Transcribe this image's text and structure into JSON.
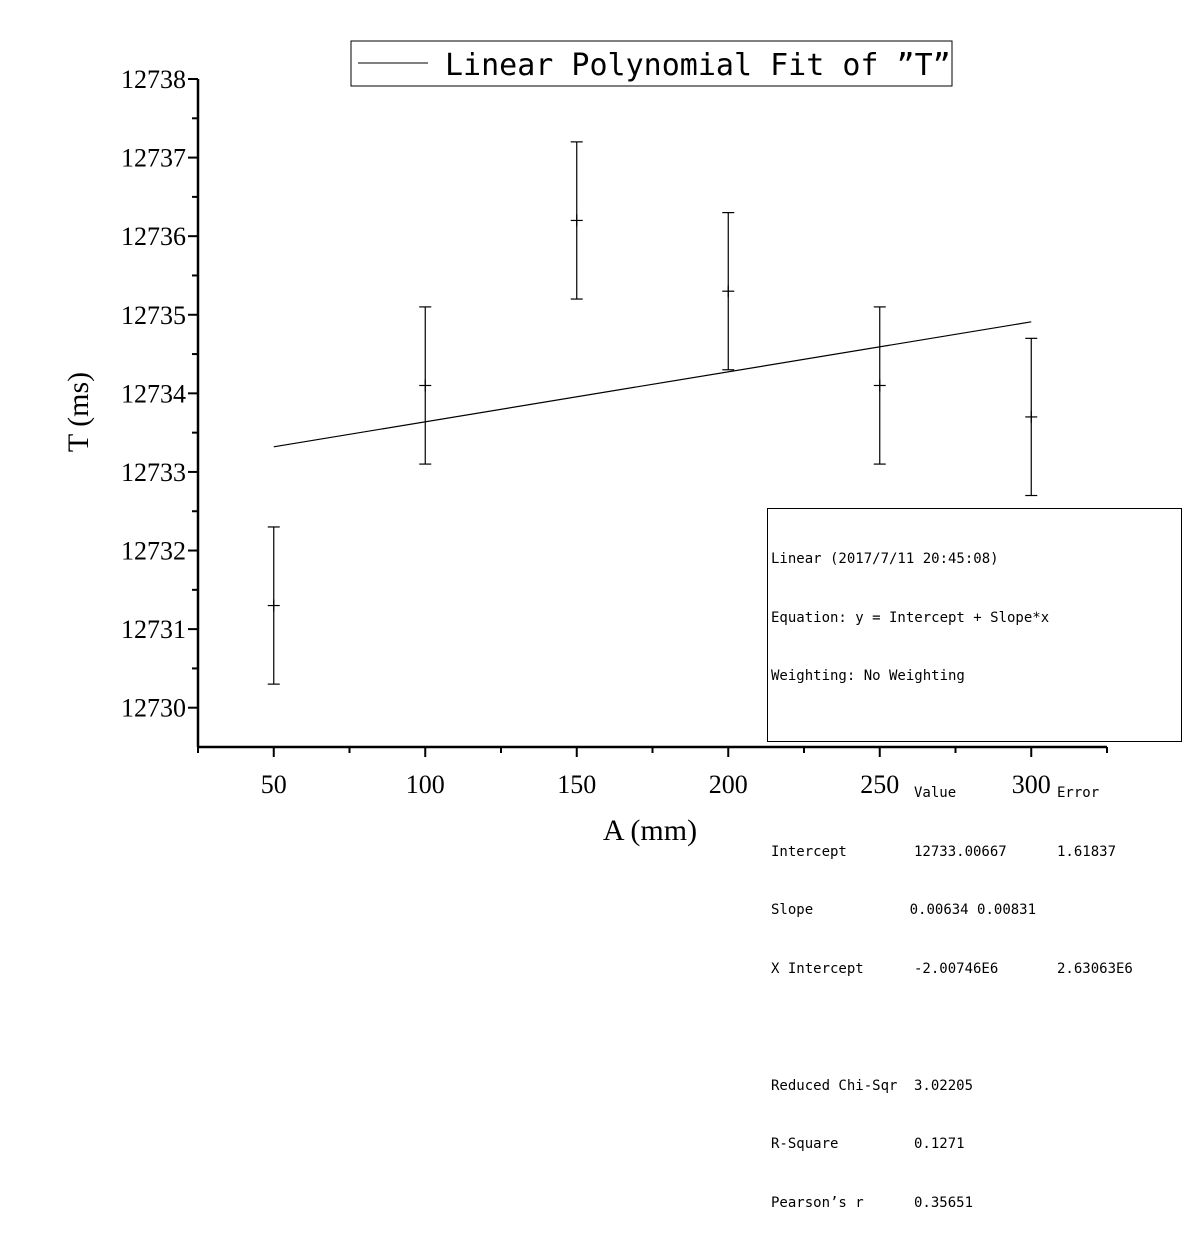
{
  "chart_data": {
    "type": "scatter",
    "title": "",
    "xlabel": "A (mm)",
    "ylabel": "T (ms)",
    "xlim": [
      25,
      325
    ],
    "ylim": [
      12729.5,
      12738
    ],
    "x_ticks": [
      "50",
      "100",
      "150",
      "200",
      "250",
      "300"
    ],
    "y_ticks": [
      "12730",
      "12731",
      "12732",
      "12733",
      "12734",
      "12735",
      "12736",
      "12737",
      "12738"
    ],
    "legend": {
      "position": "top-center",
      "entries": [
        "Linear Polynomial Fit of ”T”"
      ]
    },
    "series": [
      {
        "x": [
          50,
          100,
          150,
          200,
          250,
          300
        ],
        "y": [
          12731.3,
          12734.1,
          12736.2,
          12735.3,
          12734.1,
          12733.7
        ],
        "error": [
          1.0,
          1.0,
          1.0,
          1.0,
          1.0,
          1.0
        ]
      },
      {
        "name": "Linear Polynomial Fit of ”T”",
        "type": "line",
        "x": [
          50,
          300
        ],
        "y": [
          12733.32,
          12734.91
        ]
      }
    ]
  },
  "stats": {
    "line1": "Linear (2017/7/11 20:45:08)",
    "line2": "Equation: y = Intercept + Slope*x",
    "line3": "Weighting: No Weighting",
    "header": [
      "",
      "Value",
      "Error"
    ],
    "rows": [
      [
        "Intercept",
        "12733.00667",
        "1.61837"
      ],
      [
        "Slope",
        "0.00634 0.00831",
        ""
      ],
      [
        "X Intercept",
        "-2.00746E6",
        "2.63063E6"
      ]
    ],
    "rows2": [
      [
        "Reduced Chi-Sqr",
        "3.02205"
      ],
      [
        "R-Square",
        "0.1271"
      ],
      [
        "Pearson’s r",
        "0.35651"
      ]
    ]
  }
}
